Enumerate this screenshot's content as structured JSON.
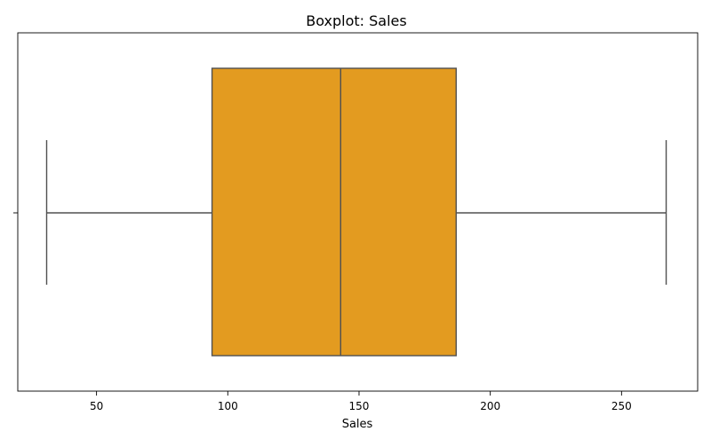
{
  "chart_data": {
    "type": "boxplot",
    "title": "Boxplot: Sales",
    "xlabel": "Sales",
    "ylabel": "",
    "orientation": "horizontal",
    "xlim": [
      20,
      279
    ],
    "xticks": [
      50,
      100,
      150,
      200,
      250
    ],
    "grid": false,
    "legend": "none",
    "series": [
      {
        "whisker_low": 31,
        "q1": 94,
        "median": 143,
        "q3": 187,
        "whisker_high": 267,
        "color": "#e39b20",
        "line_color": "#505050"
      }
    ]
  }
}
